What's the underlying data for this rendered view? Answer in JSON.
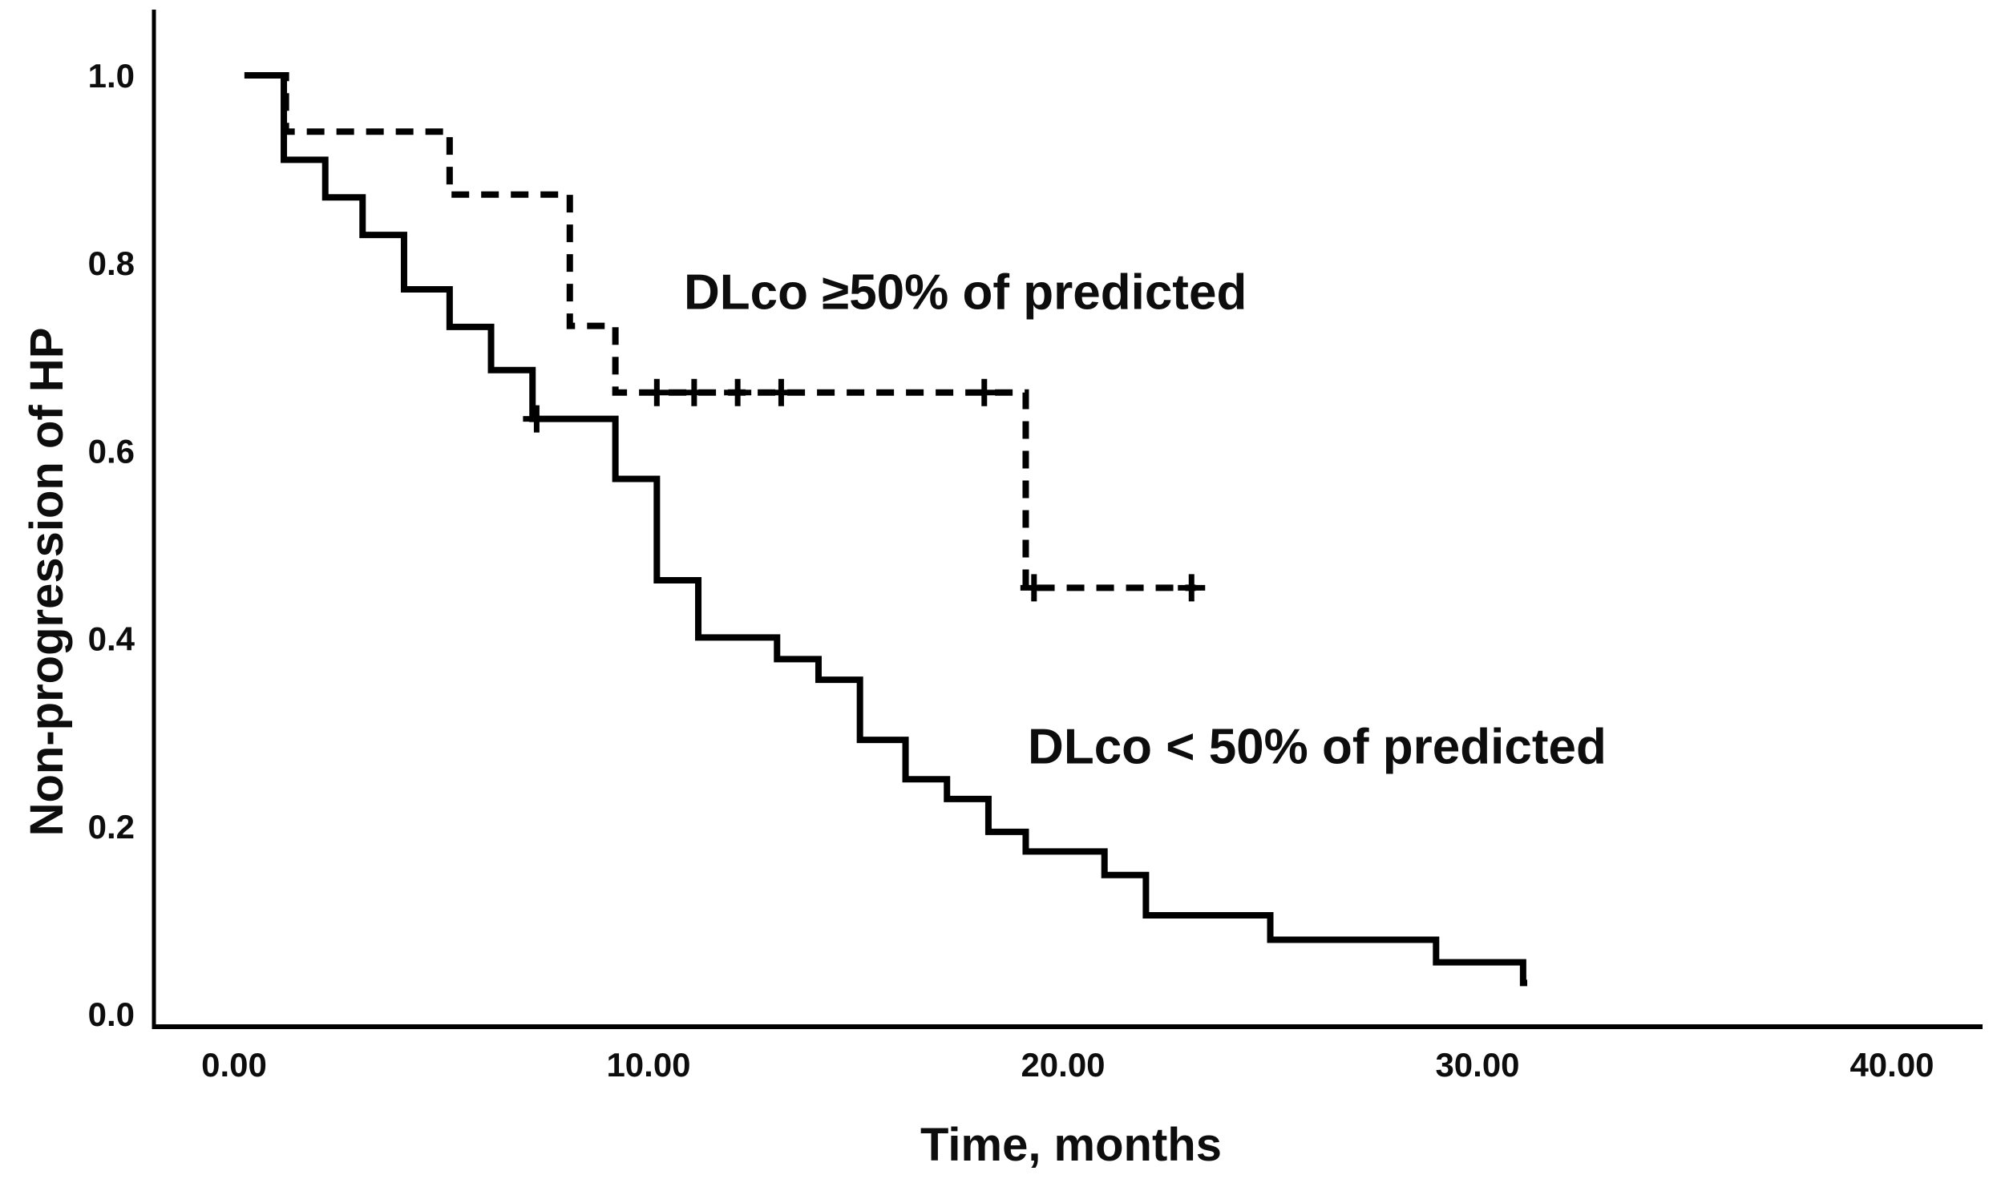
{
  "figure": {
    "x_axis_title": "Time, months",
    "y_axis_title": "Non-progression of HP"
  },
  "colors": {
    "ink": "#000000",
    "background": "#ffffff"
  },
  "chart_data": {
    "type": "line",
    "subtype": "kaplan-meier-step",
    "title": "",
    "xlabel": "Time, months",
    "ylabel": "Non-progression of HP",
    "xlim": [
      0,
      40
    ],
    "ylim": [
      0.0,
      1.0
    ],
    "grid": false,
    "legend_position": "inline-annotations",
    "x_ticks": [
      "0.00",
      "10.00",
      "20.00",
      "30.00",
      "40.00"
    ],
    "x_tick_values": [
      0,
      10,
      20,
      30,
      40
    ],
    "y_ticks": [
      "1.0",
      "0.8",
      "0.6",
      "0.4",
      "0.2",
      "0.0"
    ],
    "y_tick_values": [
      1.0,
      0.8,
      0.6,
      0.4,
      0.2,
      0.0
    ],
    "series": [
      {
        "name": "DLco >=50% of predicted",
        "label": "DLco ≥50% of predicted",
        "line_style": "dashed",
        "color": "#000000",
        "start_t": 0.25,
        "start_s": 1.0,
        "end_t": 23.2,
        "steps": [
          [
            1.25,
            0.94
          ],
          [
            5.2,
            0.873
          ],
          [
            8.1,
            0.733
          ],
          [
            9.2,
            0.662
          ],
          [
            19.1,
            0.454
          ]
        ],
        "censor_marks": [
          [
            10.2,
            0.662
          ],
          [
            11.1,
            0.662
          ],
          [
            12.15,
            0.662
          ],
          [
            13.2,
            0.662
          ],
          [
            18.1,
            0.662
          ],
          [
            19.3,
            0.454
          ],
          [
            23.1,
            0.454
          ]
        ],
        "label_pos": {
          "t": 10.85,
          "s": 0.751
        }
      },
      {
        "name": "DLco < 50% of predicted",
        "label": "DLco < 50% of predicted",
        "line_style": "solid",
        "color": "#000000",
        "start_t": 0.25,
        "start_s": 1.0,
        "end_t": 31.2,
        "steps": [
          [
            1.2,
            0.91
          ],
          [
            2.2,
            0.87
          ],
          [
            3.1,
            0.83
          ],
          [
            4.1,
            0.772
          ],
          [
            5.2,
            0.732
          ],
          [
            6.2,
            0.686
          ],
          [
            7.2,
            0.634
          ],
          [
            9.2,
            0.57
          ],
          [
            10.2,
            0.462
          ],
          [
            11.2,
            0.401
          ],
          [
            13.1,
            0.378
          ],
          [
            14.1,
            0.356
          ],
          [
            15.1,
            0.292
          ],
          [
            16.2,
            0.25
          ],
          [
            17.2,
            0.229
          ],
          [
            18.2,
            0.194
          ],
          [
            19.1,
            0.173
          ],
          [
            21.0,
            0.148
          ],
          [
            22.0,
            0.105
          ],
          [
            25.0,
            0.079
          ],
          [
            29.0,
            0.055
          ],
          [
            31.1,
            0.033
          ]
        ],
        "censor_marks": [
          [
            7.3,
            0.634
          ]
        ],
        "label_pos": {
          "t": 19.15,
          "s": 0.267
        }
      }
    ]
  }
}
